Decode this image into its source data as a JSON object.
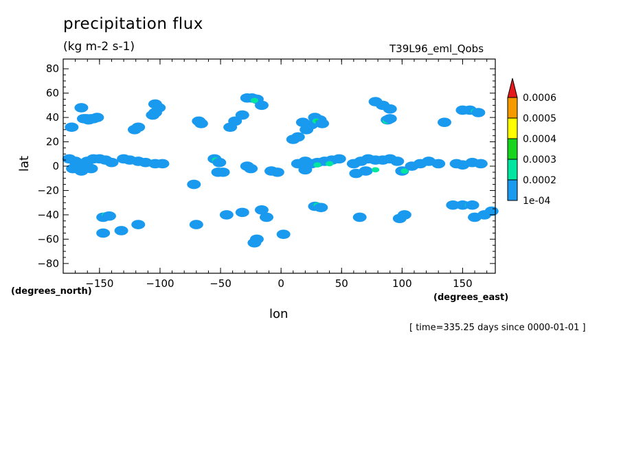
{
  "chart_data": {
    "type": "heatmap",
    "title": "precipitation flux",
    "units": "(kg m-2 s-1)",
    "run_label": "T39L96_eml_Qobs",
    "xlabel": "lon",
    "ylabel": "lat",
    "x_units": "(degrees_east)",
    "y_units": "(degrees_north)",
    "time_label": "[ time=335.25 days since 0000-01-01 ]",
    "xlim": [
      -180,
      177
    ],
    "ylim": [
      -88,
      88
    ],
    "x_ticks": [
      -150,
      -100,
      -50,
      0,
      50,
      100,
      150
    ],
    "y_ticks": [
      -80,
      -60,
      -40,
      -20,
      0,
      20,
      40,
      60,
      80
    ],
    "colorbar": {
      "levels": [
        "1e-04",
        "0.0002",
        "0.0003",
        "0.0004",
        "0.0005",
        "0.0006"
      ],
      "colors": [
        "#1a9aef",
        "#00e5a0",
        "#17d41c",
        "#ffff00",
        "#f79a00",
        "#e41a1c"
      ]
    },
    "cells": [
      {
        "lon": -163,
        "lat": 39,
        "level": 0
      },
      {
        "lon": -161,
        "lat": 39,
        "level": 0
      },
      {
        "lon": -157,
        "lat": 39,
        "level": 0
      },
      {
        "lon": -155,
        "lat": 39,
        "level": 0
      },
      {
        "lon": -159,
        "lat": 38,
        "level": 0
      },
      {
        "lon": -152,
        "lat": 40,
        "level": 0
      },
      {
        "lon": -165,
        "lat": 48,
        "level": 0
      },
      {
        "lon": -173,
        "lat": 32,
        "level": 0
      },
      {
        "lon": -121,
        "lat": 30,
        "level": 0
      },
      {
        "lon": -118,
        "lat": 32,
        "level": 0
      },
      {
        "lon": -106,
        "lat": 42,
        "level": 0
      },
      {
        "lon": -104,
        "lat": 44,
        "level": 0
      },
      {
        "lon": -101,
        "lat": 48,
        "level": 0
      },
      {
        "lon": -104,
        "lat": 51,
        "level": 0
      },
      {
        "lon": -68,
        "lat": 37,
        "level": 0
      },
      {
        "lon": -66,
        "lat": 35,
        "level": 0
      },
      {
        "lon": -38,
        "lat": 37,
        "level": 0
      },
      {
        "lon": -42,
        "lat": 32,
        "level": 0
      },
      {
        "lon": -32,
        "lat": 42,
        "level": 0
      },
      {
        "lon": -28,
        "lat": 56,
        "level": 0
      },
      {
        "lon": -24,
        "lat": 56,
        "level": 0
      },
      {
        "lon": -20,
        "lat": 55,
        "level": 0
      },
      {
        "lon": -16,
        "lat": 50,
        "level": 0
      },
      {
        "lon": -22,
        "lat": 54,
        "level": 1
      },
      {
        "lon": 18,
        "lat": 36,
        "level": 0
      },
      {
        "lon": 25,
        "lat": 34,
        "level": 0
      },
      {
        "lon": 21,
        "lat": 30,
        "level": 0
      },
      {
        "lon": 14,
        "lat": 24,
        "level": 0
      },
      {
        "lon": 10,
        "lat": 22,
        "level": 0
      },
      {
        "lon": 28,
        "lat": 40,
        "level": 0
      },
      {
        "lon": 32,
        "lat": 38,
        "level": 0
      },
      {
        "lon": 29,
        "lat": 37,
        "level": 1
      },
      {
        "lon": 30,
        "lat": 37,
        "level": 2
      },
      {
        "lon": 34,
        "lat": 35,
        "level": 0
      },
      {
        "lon": 78,
        "lat": 53,
        "level": 0
      },
      {
        "lon": 84,
        "lat": 50,
        "level": 0
      },
      {
        "lon": 90,
        "lat": 47,
        "level": 0
      },
      {
        "lon": 88,
        "lat": 38,
        "level": 0
      },
      {
        "lon": 87,
        "lat": 37,
        "level": 1
      },
      {
        "lon": 90,
        "lat": 39,
        "level": 0
      },
      {
        "lon": 135,
        "lat": 36,
        "level": 0
      },
      {
        "lon": 150,
        "lat": 46,
        "level": 0
      },
      {
        "lon": 156,
        "lat": 46,
        "level": 0
      },
      {
        "lon": 160,
        "lat": 45,
        "level": 1
      },
      {
        "lon": 163,
        "lat": 44,
        "level": 0
      },
      {
        "lon": -175,
        "lat": 6,
        "level": 0
      },
      {
        "lon": -170,
        "lat": 4,
        "level": 0
      },
      {
        "lon": -165,
        "lat": 2,
        "level": 0
      },
      {
        "lon": -160,
        "lat": 4,
        "level": 0
      },
      {
        "lon": -155,
        "lat": 6,
        "level": 0
      },
      {
        "lon": -150,
        "lat": 6,
        "level": 0
      },
      {
        "lon": -145,
        "lat": 5,
        "level": 0
      },
      {
        "lon": -140,
        "lat": 3,
        "level": 0
      },
      {
        "lon": -172,
        "lat": -2,
        "level": 0
      },
      {
        "lon": -165,
        "lat": -4,
        "level": 0
      },
      {
        "lon": -157,
        "lat": -2,
        "level": 0
      },
      {
        "lon": -130,
        "lat": 6,
        "level": 0
      },
      {
        "lon": -125,
        "lat": 5,
        "level": 0
      },
      {
        "lon": -118,
        "lat": 4,
        "level": 0
      },
      {
        "lon": -112,
        "lat": 3,
        "level": 0
      },
      {
        "lon": -104,
        "lat": 2,
        "level": 0
      },
      {
        "lon": -98,
        "lat": 2,
        "level": 0
      },
      {
        "lon": -55,
        "lat": 6,
        "level": 0
      },
      {
        "lon": -54,
        "lat": 5,
        "level": 1
      },
      {
        "lon": -51,
        "lat": 3,
        "level": 0
      },
      {
        "lon": -48,
        "lat": -5,
        "level": 0
      },
      {
        "lon": -52,
        "lat": -5,
        "level": 0
      },
      {
        "lon": -28,
        "lat": 0,
        "level": 0
      },
      {
        "lon": -25,
        "lat": -2,
        "level": 0
      },
      {
        "lon": -8,
        "lat": -4,
        "level": 0
      },
      {
        "lon": -3,
        "lat": -5,
        "level": 0
      },
      {
        "lon": 14,
        "lat": 2,
        "level": 0
      },
      {
        "lon": 20,
        "lat": 4,
        "level": 0
      },
      {
        "lon": 25,
        "lat": 2,
        "level": 0
      },
      {
        "lon": 30,
        "lat": 3,
        "level": 0
      },
      {
        "lon": 36,
        "lat": 4,
        "level": 0
      },
      {
        "lon": 42,
        "lat": 5,
        "level": 0
      },
      {
        "lon": 48,
        "lat": 6,
        "level": 0
      },
      {
        "lon": 20,
        "lat": -3,
        "level": 0
      },
      {
        "lon": 30,
        "lat": 1,
        "level": 1
      },
      {
        "lon": 40,
        "lat": 2,
        "level": 1
      },
      {
        "lon": 60,
        "lat": 2,
        "level": 0
      },
      {
        "lon": 66,
        "lat": 4,
        "level": 0
      },
      {
        "lon": 72,
        "lat": 6,
        "level": 0
      },
      {
        "lon": 78,
        "lat": 5,
        "level": 0
      },
      {
        "lon": 84,
        "lat": 5,
        "level": 0
      },
      {
        "lon": 90,
        "lat": 6,
        "level": 0
      },
      {
        "lon": 96,
        "lat": 4,
        "level": 0
      },
      {
        "lon": 62,
        "lat": -6,
        "level": 0
      },
      {
        "lon": 70,
        "lat": -4,
        "level": 0
      },
      {
        "lon": 78,
        "lat": -3,
        "level": 1
      },
      {
        "lon": 100,
        "lat": -4,
        "level": 0
      },
      {
        "lon": 102,
        "lat": -4,
        "level": 1
      },
      {
        "lon": 108,
        "lat": 0,
        "level": 0
      },
      {
        "lon": 115,
        "lat": 2,
        "level": 0
      },
      {
        "lon": 122,
        "lat": 4,
        "level": 0
      },
      {
        "lon": 130,
        "lat": 2,
        "level": 0
      },
      {
        "lon": 145,
        "lat": 2,
        "level": 0
      },
      {
        "lon": 150,
        "lat": 1,
        "level": 0
      },
      {
        "lon": 158,
        "lat": 3,
        "level": 0
      },
      {
        "lon": 165,
        "lat": 2,
        "level": 0
      },
      {
        "lon": -72,
        "lat": -15,
        "level": 0
      },
      {
        "lon": -147,
        "lat": -42,
        "level": 0
      },
      {
        "lon": -145,
        "lat": -40,
        "level": 1
      },
      {
        "lon": -142,
        "lat": -41,
        "level": 0
      },
      {
        "lon": -147,
        "lat": -55,
        "level": 0
      },
      {
        "lon": -132,
        "lat": -53,
        "level": 0
      },
      {
        "lon": -118,
        "lat": -48,
        "level": 0
      },
      {
        "lon": -70,
        "lat": -48,
        "level": 0
      },
      {
        "lon": -45,
        "lat": -40,
        "level": 0
      },
      {
        "lon": -32,
        "lat": -38,
        "level": 0
      },
      {
        "lon": -22,
        "lat": -63,
        "level": 0
      },
      {
        "lon": -20,
        "lat": -60,
        "level": 0
      },
      {
        "lon": 2,
        "lat": -56,
        "level": 0
      },
      {
        "lon": -12,
        "lat": -42,
        "level": 0
      },
      {
        "lon": -16,
        "lat": -36,
        "level": 0
      },
      {
        "lon": 28,
        "lat": -33,
        "level": 0
      },
      {
        "lon": 30,
        "lat": -32,
        "level": 1
      },
      {
        "lon": 30,
        "lat": -33,
        "level": 2
      },
      {
        "lon": 33,
        "lat": -34,
        "level": 0
      },
      {
        "lon": 65,
        "lat": -42,
        "level": 0
      },
      {
        "lon": 98,
        "lat": -43,
        "level": 0
      },
      {
        "lon": 102,
        "lat": -40,
        "level": 0
      },
      {
        "lon": 142,
        "lat": -32,
        "level": 0
      },
      {
        "lon": 150,
        "lat": -32,
        "level": 0
      },
      {
        "lon": 155,
        "lat": -32,
        "level": 1
      },
      {
        "lon": 158,
        "lat": -32,
        "level": 0
      },
      {
        "lon": 160,
        "lat": -42,
        "level": 0
      },
      {
        "lon": 168,
        "lat": -40,
        "level": 0
      },
      {
        "lon": 174,
        "lat": -37,
        "level": 0
      }
    ]
  }
}
